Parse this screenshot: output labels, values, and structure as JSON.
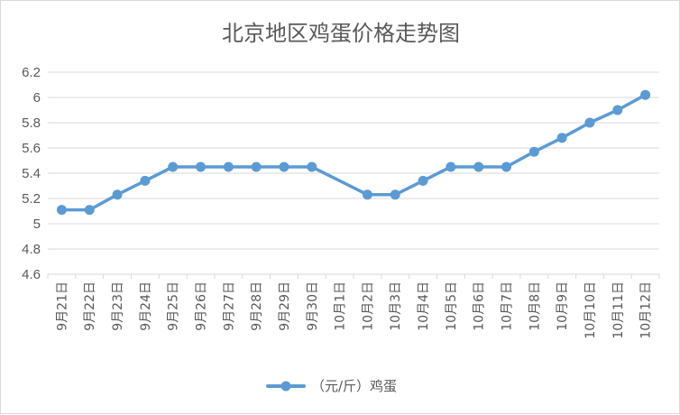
{
  "chart_data": {
    "type": "line",
    "title": "北京地区鸡蛋价格走势图",
    "categories": [
      "9月21日",
      "9月22日",
      "9月23日",
      "9月24日",
      "9月25日",
      "9月26日",
      "9月27日",
      "9月28日",
      "9月29日",
      "9月30日",
      "10月1日",
      "10月2日",
      "10月3日",
      "10月4日",
      "10月5日",
      "10月6日",
      "10月7日",
      "10月8日",
      "10月9日",
      "10月10日",
      "10月11日",
      "10月12日"
    ],
    "series": [
      {
        "name": "（元/斤）鸡蛋",
        "values": [
          5.11,
          5.11,
          5.23,
          5.34,
          5.45,
          5.45,
          5.45,
          5.45,
          5.45,
          5.45,
          null,
          5.23,
          5.23,
          5.34,
          5.45,
          5.45,
          5.45,
          5.57,
          5.68,
          5.8,
          5.9,
          6.02
        ]
      }
    ],
    "ylim": [
      4.6,
      6.2
    ],
    "yticks": [
      "4.6",
      "4.8",
      "5",
      "5.2",
      "5.4",
      "5.6",
      "5.8",
      "6",
      "6.2"
    ],
    "xlabel": "",
    "ylabel": "",
    "grid": true,
    "legend": "bottom",
    "line_color": "#5b9bd5"
  }
}
